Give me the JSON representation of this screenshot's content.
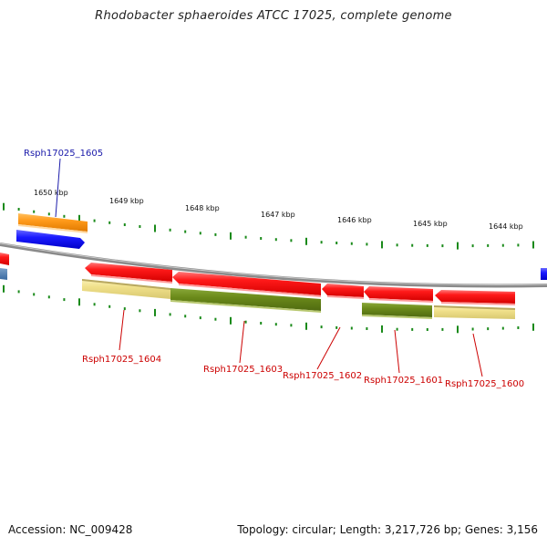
{
  "title": "Rhodobacter sphaeroides ATCC 17025, complete genome",
  "footer": {
    "accession": "Accession: NC_009428",
    "summary": "Topology: circular; Length: 3,217,726 bp; Genes: 3,156"
  },
  "colors": {
    "backbone": "#8a8a8a",
    "tick": "#1a8a1a",
    "gene_red": "#ff1a1a",
    "gene_blue": "#1a1aff",
    "gene_orange": "#ff9a1a",
    "gene_olive": "#6b8a1a",
    "gene_pale": "#f0e08a",
    "label_blue": "#1a1aaa",
    "label_red": "#cc0000"
  },
  "scale_labels": [
    "1650 kbp",
    "1649 kbp",
    "1648 kbp",
    "1647 kbp",
    "1646 kbp",
    "1645 kbp",
    "1644 kbp"
  ],
  "gene_labels": [
    {
      "name": "Rsph17025_1605",
      "color": "blue"
    },
    {
      "name": "Rsph17025_1604",
      "color": "red"
    },
    {
      "name": "Rsph17025_1603",
      "color": "red"
    },
    {
      "name": "Rsph17025_1602",
      "color": "red"
    },
    {
      "name": "Rsph17025_1601",
      "color": "red"
    },
    {
      "name": "Rsph17025_1600",
      "color": "red"
    }
  ]
}
